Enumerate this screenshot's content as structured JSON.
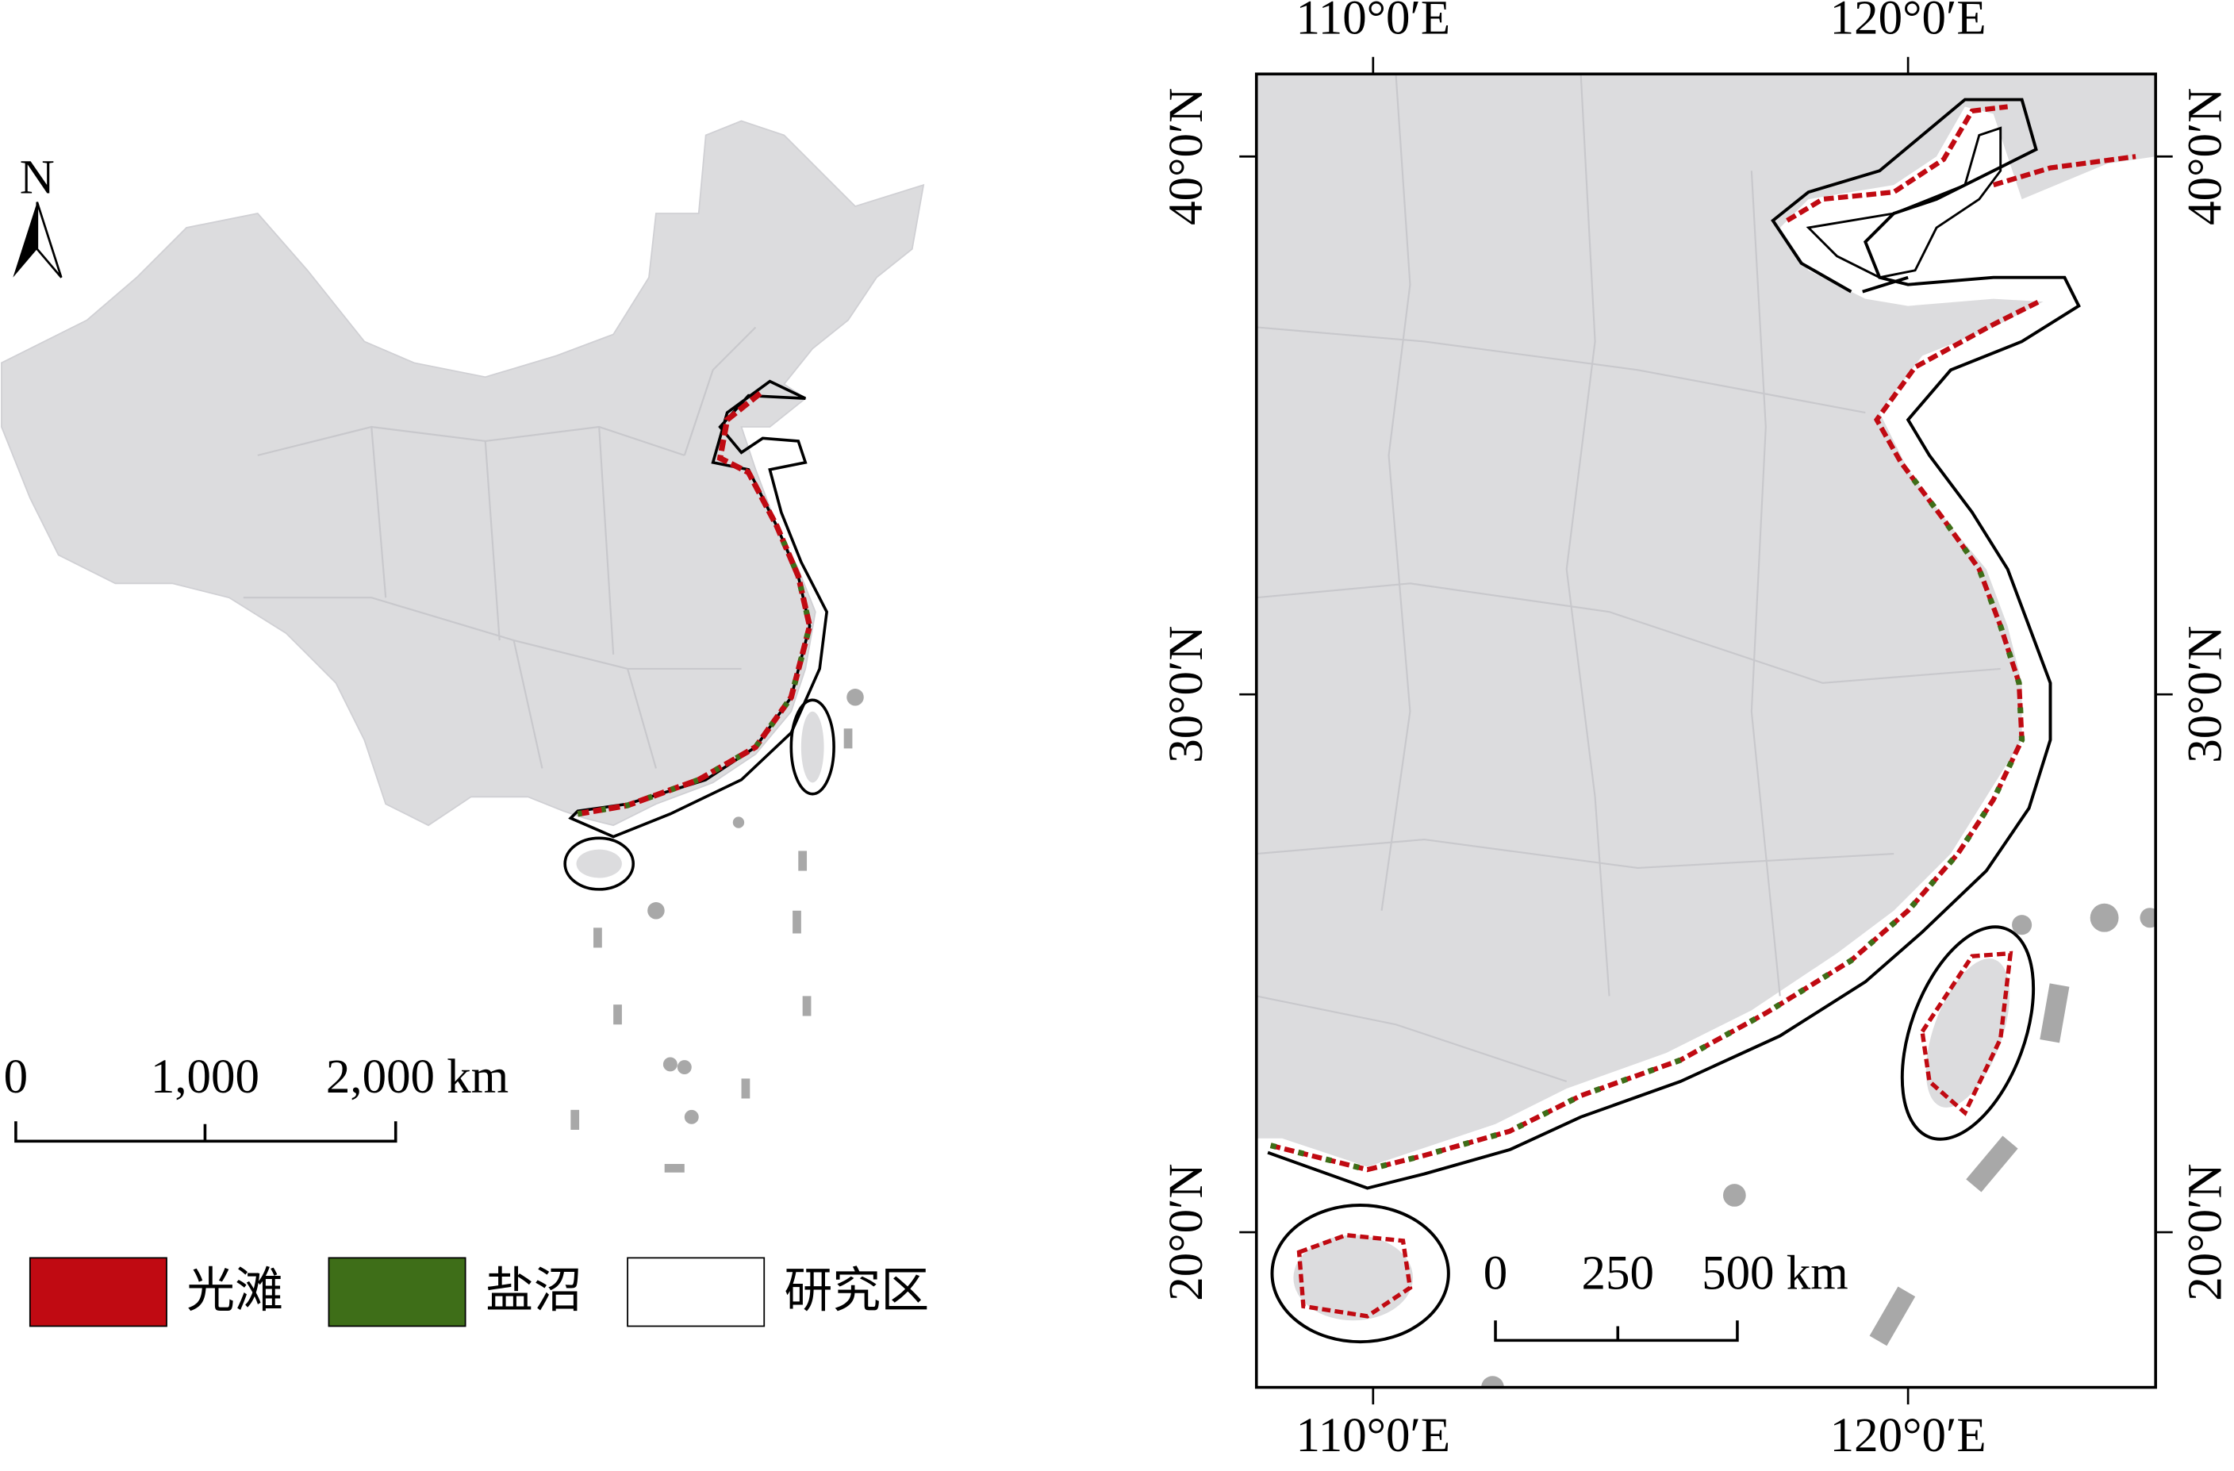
{
  "left_map": {
    "north_label": "N",
    "scale_bar": [
      "0",
      "1,000",
      "2,000 km"
    ]
  },
  "legend": {
    "items": [
      {
        "label": "光滩",
        "color": "#c00a12"
      },
      {
        "label": "盐沼",
        "color": "#3e6e18"
      },
      {
        "label": "研究区",
        "color": "#ffffff"
      }
    ]
  },
  "right_map": {
    "lon_labels": [
      "110°0′E",
      "120°0′E"
    ],
    "lat_labels": [
      "40°0′N",
      "30°0′N",
      "20°0′N"
    ],
    "scale_bar": [
      "0",
      "250",
      "500 km"
    ]
  }
}
